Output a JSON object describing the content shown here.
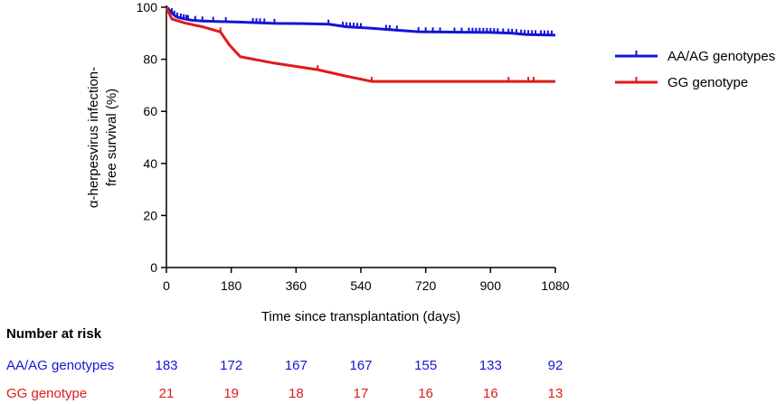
{
  "chart_data": {
    "type": "line",
    "subtype": "kaplan-meier",
    "xlabel": "Time since transplantation (days)",
    "ylabel_lines": [
      "α-herpesvirus infection-",
      "free survival (%)"
    ],
    "xlim": [
      0,
      1080
    ],
    "ylim": [
      0,
      100
    ],
    "x_ticks": [
      0,
      180,
      360,
      540,
      720,
      900,
      1080
    ],
    "y_ticks": [
      0,
      20,
      40,
      60,
      80,
      100
    ],
    "grid": false,
    "legend_position": "right",
    "series": [
      {
        "name": "AA/AG genotypes",
        "color": "#1515d6",
        "points": [
          [
            0,
            100
          ],
          [
            5,
            99.5
          ],
          [
            10,
            98.5
          ],
          [
            18,
            97.5
          ],
          [
            25,
            96.5
          ],
          [
            35,
            96
          ],
          [
            50,
            95.5
          ],
          [
            70,
            95
          ],
          [
            100,
            94.7
          ],
          [
            150,
            94.5
          ],
          [
            200,
            94.3
          ],
          [
            260,
            94
          ],
          [
            300,
            93.8
          ],
          [
            380,
            93.7
          ],
          [
            450,
            93.5
          ],
          [
            500,
            92.5
          ],
          [
            560,
            92
          ],
          [
            640,
            91.2
          ],
          [
            700,
            90.6
          ],
          [
            760,
            90.5
          ],
          [
            900,
            90.3
          ],
          [
            960,
            90
          ],
          [
            1000,
            89.5
          ],
          [
            1080,
            89.3
          ]
        ],
        "censor_x": [
          15,
          22,
          30,
          40,
          48,
          55,
          60,
          80,
          100,
          130,
          165,
          240,
          250,
          260,
          272,
          300,
          450,
          490,
          500,
          510,
          520,
          530,
          540,
          610,
          620,
          640,
          700,
          720,
          740,
          760,
          800,
          820,
          840,
          850,
          860,
          870,
          880,
          890,
          900,
          910,
          920,
          935,
          950,
          960,
          972,
          985,
          995,
          1005,
          1015,
          1025,
          1040,
          1050,
          1060,
          1070
        ]
      },
      {
        "name": "GG genotype",
        "color": "#e01a1a",
        "points": [
          [
            0,
            100
          ],
          [
            15,
            95.5
          ],
          [
            50,
            94
          ],
          [
            100,
            92.5
          ],
          [
            150,
            90.5
          ],
          [
            175,
            85.5
          ],
          [
            205,
            81
          ],
          [
            300,
            78.5
          ],
          [
            420,
            76
          ],
          [
            500,
            73.5
          ],
          [
            570,
            71.5
          ],
          [
            1080,
            71.5
          ]
        ],
        "censor_x": [
          150,
          420,
          570,
          950,
          1005,
          1020
        ]
      }
    ],
    "risk_table": {
      "title": "Number at risk",
      "times": [
        0,
        180,
        360,
        540,
        720,
        900,
        1080
      ],
      "rows": [
        {
          "label": "AA/AG genotypes",
          "color": "#1515d6",
          "values": [
            183,
            172,
            167,
            167,
            155,
            133,
            92
          ]
        },
        {
          "label": "GG genotype",
          "color": "#e01a1a",
          "values": [
            21,
            19,
            18,
            17,
            16,
            16,
            13
          ]
        }
      ]
    }
  }
}
